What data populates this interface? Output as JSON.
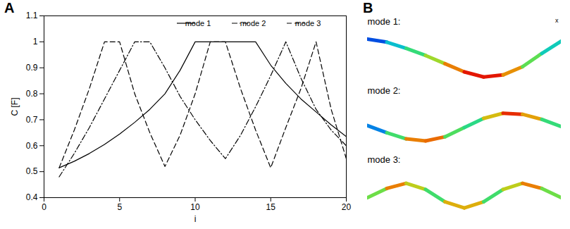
{
  "chart_data": [
    {
      "type": "line",
      "title": "A",
      "x_label": "i",
      "y_label": "C [F]",
      "x": [
        1,
        2,
        3,
        4,
        5,
        6,
        7,
        8,
        9,
        10,
        11,
        12,
        13,
        14,
        15,
        16,
        17,
        18,
        19,
        20
      ],
      "series": [
        {
          "name": "mode 1",
          "color": "#000000",
          "line_style": "solid",
          "values": [
            0.515,
            0.54,
            0.57,
            0.605,
            0.645,
            0.69,
            0.74,
            0.8,
            0.89,
            1,
            1,
            1,
            1,
            1,
            0.91,
            0.84,
            0.78,
            0.73,
            0.68,
            0.635
          ]
        },
        {
          "name": "mode 2",
          "color": "#000000",
          "line_style": "dashdot",
          "values": [
            0.48,
            0.57,
            0.67,
            0.78,
            0.89,
            1,
            1,
            0.9,
            0.79,
            0.7,
            0.62,
            0.55,
            0.64,
            0.75,
            0.87,
            1,
            0.86,
            0.74,
            0.66,
            0.6
          ]
        },
        {
          "name": "mode 3",
          "color": "#000000",
          "line_style": "dashed",
          "values": [
            0.515,
            0.66,
            0.82,
            1,
            1,
            0.8,
            0.65,
            0.52,
            0.64,
            0.8,
            1,
            1,
            0.82,
            0.66,
            0.515,
            0.67,
            0.82,
            1,
            0.74,
            0.55
          ]
        }
      ],
      "xlim": [
        0,
        20
      ],
      "xticks": [
        0,
        5,
        10,
        15,
        20
      ],
      "ylim": [
        0.4,
        1.1
      ],
      "yticks": [
        0.4,
        0.5,
        0.6,
        0.7,
        0.8,
        0.9,
        1,
        1.1
      ],
      "grid": false,
      "legend": "top-right"
    },
    {
      "type": "line",
      "title": "B",
      "tick_labels": false,
      "x": [
        0,
        0.1,
        0.2,
        0.3,
        0.4,
        0.5,
        0.6,
        0.7,
        0.8,
        0.9,
        1
      ],
      "series": [
        {
          "name": "mode 1:",
          "values": [
            0.9,
            0.75,
            0.45,
            0.1,
            -0.3,
            -0.7,
            -0.95,
            -0.85,
            -0.45,
            0.2,
            0.8
          ],
          "magnitude": [
            0,
            0.2,
            0.4,
            0.55,
            0.75,
            0.95,
            1,
            0.95,
            0.7,
            0.4,
            0.3
          ]
        },
        {
          "name": "mode 2:",
          "values": [
            0.05,
            -0.3,
            -0.6,
            -0.7,
            -0.5,
            -0.05,
            0.4,
            0.65,
            0.6,
            0.35,
            0
          ],
          "magnitude": [
            0.05,
            0.3,
            0.7,
            1,
            0.75,
            0.3,
            0.6,
            0.9,
            1,
            0.6,
            0.35
          ]
        },
        {
          "name": "mode 3:",
          "values": [
            -0.1,
            0.35,
            0.6,
            0.3,
            -0.3,
            -0.6,
            -0.3,
            0.3,
            0.6,
            0.35,
            -0.1
          ],
          "magnitude": [
            0.4,
            0.75,
            0.95,
            0.45,
            0.55,
            1,
            0.55,
            0.45,
            0.95,
            0.75,
            0.4
          ]
        }
      ],
      "xlim": [
        0,
        1
      ],
      "ylim": [
        -1.2,
        2
      ],
      "annotations": [
        {
          "text": "x",
          "series": "mode 1:"
        }
      ]
    }
  ]
}
